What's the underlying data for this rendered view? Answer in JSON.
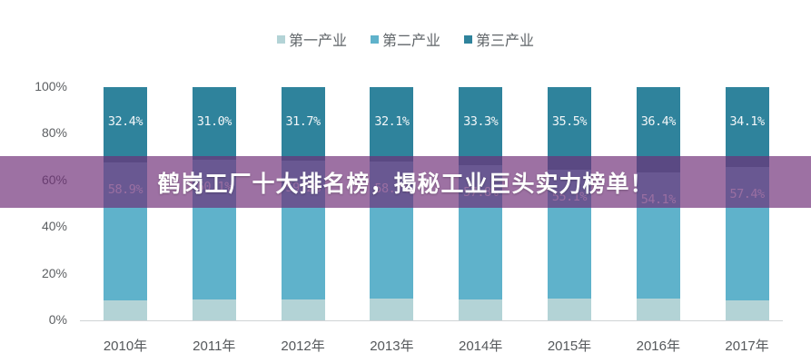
{
  "banner": {
    "title": "鹤岗工厂十大排名榜，揭秘工业巨头实力榜单！",
    "background": "#6e2d78"
  },
  "chart_data": {
    "type": "bar",
    "stacked": true,
    "title": "",
    "xlabel": "",
    "ylabel": "",
    "ylim": [
      0,
      100
    ],
    "yticks": [
      "0%",
      "20%",
      "40%",
      "60%",
      "80%",
      "100%"
    ],
    "categories": [
      "2010年",
      "2011年",
      "2012年",
      "2013年",
      "2014年",
      "2015年",
      "2016年",
      "2017年"
    ],
    "series": [
      {
        "name": "第一产业",
        "color": "#b3d3d6",
        "values": [
          8.7,
          8.9,
          9.1,
          9.2,
          8.9,
          9.4,
          9.5,
          8.5
        ],
        "labeled": false
      },
      {
        "name": "第二产业",
        "color": "#5fb2cb",
        "values": [
          58.9,
          60.1,
          59.2,
          58.7,
          57.8,
          55.1,
          54.1,
          57.4
        ],
        "labels": [
          "58.9%",
          "60.1%",
          "59.2%",
          "58.7%",
          "57.8%",
          "55.1%",
          "54.1%",
          "57.4%"
        ]
      },
      {
        "name": "第三产业",
        "color": "#2f839c",
        "values": [
          32.4,
          31.0,
          31.7,
          32.1,
          33.3,
          35.5,
          36.4,
          34.1
        ],
        "labels": [
          "32.4%",
          "31.0%",
          "31.7%",
          "32.1%",
          "33.3%",
          "35.5%",
          "36.4%",
          "34.1%"
        ]
      }
    ],
    "legend_position": "top",
    "grid": false
  }
}
